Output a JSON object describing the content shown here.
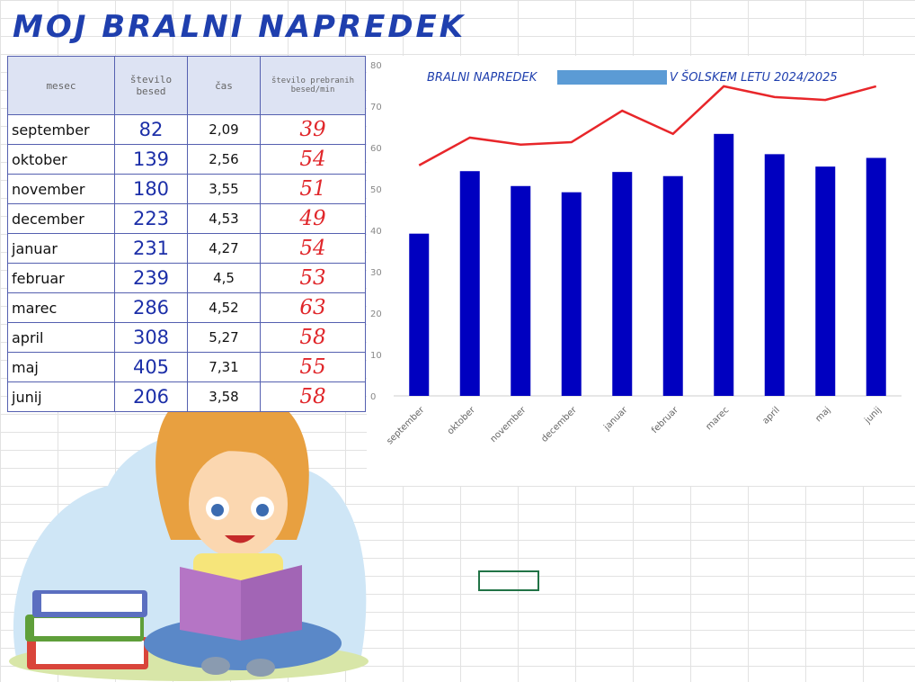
{
  "title": "MOJ BRALNI NAPREDEK",
  "table": {
    "header": [
      "mesec",
      "število besed",
      "čas",
      "število prebranih besed/min"
    ],
    "rows": [
      [
        "september",
        82,
        "2,09",
        39
      ],
      [
        "oktober",
        139,
        "2,56",
        54
      ],
      [
        "november",
        180,
        "3,55",
        51
      ],
      [
        "december",
        223,
        "4,53",
        49
      ],
      [
        "januar",
        231,
        "4,27",
        54
      ],
      [
        "februar",
        239,
        "4,5",
        53
      ],
      [
        "marec",
        286,
        "4,52",
        63
      ],
      [
        "april",
        308,
        "5,27",
        58
      ],
      [
        "maj",
        405,
        "7,31",
        55
      ],
      [
        "junij",
        206,
        "3,58",
        58
      ]
    ]
  },
  "chart_data": {
    "type": "bar",
    "title_parts": [
      "BRALNI NAPREDEK",
      "V ŠOLSKEM LETU 2024/2025"
    ],
    "categories": [
      "september",
      "oktober",
      "november",
      "december",
      "januar",
      "februar",
      "marec",
      "april",
      "maj",
      "junij"
    ],
    "series": [
      {
        "type": "bar",
        "color": "#0000c0",
        "values": [
          39.2,
          54.3,
          50.7,
          49.2,
          54.1,
          53.1,
          63.3,
          58.4,
          55.4,
          57.5
        ]
      },
      {
        "type": "line",
        "color": "#e8262a",
        "values": [
          55.7,
          62.4,
          60.7,
          61.3,
          68.9,
          63.3,
          74.8,
          72.2,
          71.5,
          74.8
        ]
      }
    ],
    "ylim": [
      0,
      80
    ],
    "yticks": [
      0,
      10,
      20,
      30,
      40,
      50,
      60,
      70,
      80
    ],
    "grid": false
  }
}
